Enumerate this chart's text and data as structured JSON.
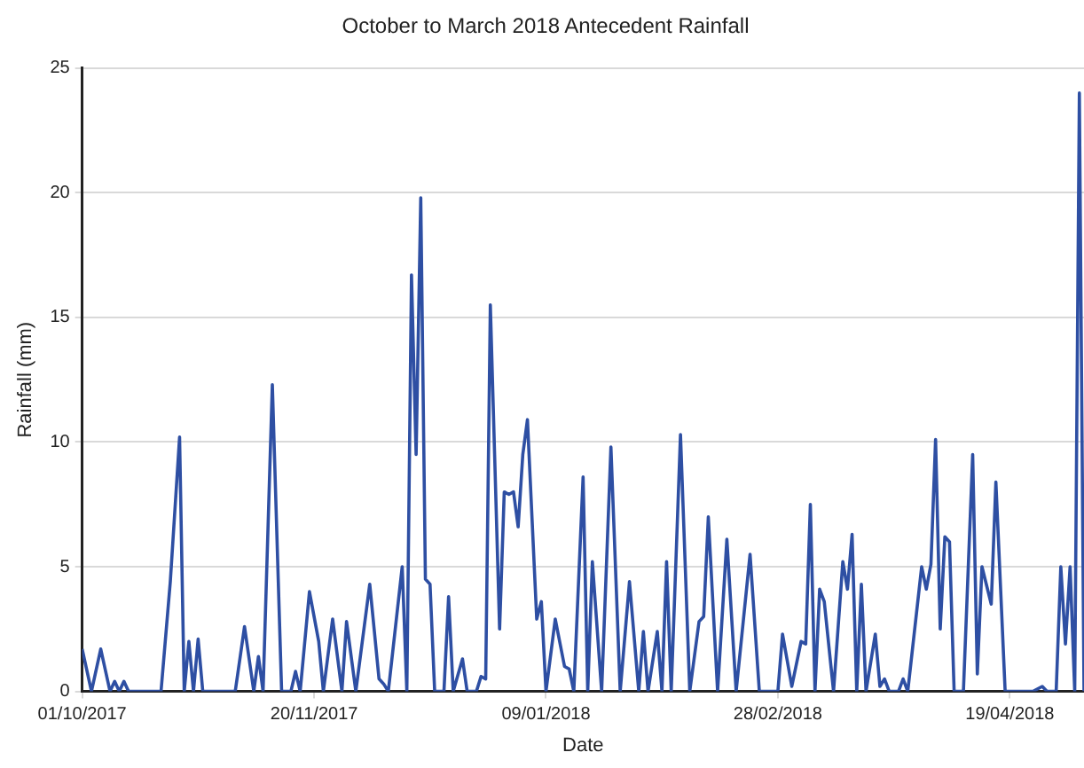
{
  "chart_data": {
    "type": "line",
    "title": "October to March 2018 Antecedent Rainfall",
    "xlabel": "Date",
    "ylabel": "Rainfall (mm)",
    "x": [
      "2017-10-01",
      "2017-10-03",
      "2017-10-05",
      "2017-10-07",
      "2017-10-08",
      "2017-10-09",
      "2017-10-10",
      "2017-10-11",
      "2017-10-18",
      "2017-10-20",
      "2017-10-22",
      "2017-10-23",
      "2017-10-24",
      "2017-10-25",
      "2017-10-26",
      "2017-10-27",
      "2017-11-03",
      "2017-11-05",
      "2017-11-07",
      "2017-11-08",
      "2017-11-09",
      "2017-11-11",
      "2017-11-13",
      "2017-11-15",
      "2017-11-16",
      "2017-11-17",
      "2017-11-19",
      "2017-11-21",
      "2017-11-22",
      "2017-11-24",
      "2017-11-26",
      "2017-11-27",
      "2017-11-29",
      "2017-12-02",
      "2017-12-04",
      "2017-12-05",
      "2017-12-06",
      "2017-12-09",
      "2017-12-10",
      "2017-12-11",
      "2017-12-12",
      "2017-12-13",
      "2017-12-14",
      "2017-12-15",
      "2017-12-16",
      "2017-12-18",
      "2017-12-19",
      "2017-12-20",
      "2017-12-22",
      "2017-12-23",
      "2017-12-25",
      "2017-12-26",
      "2017-12-27",
      "2017-12-28",
      "2017-12-30",
      "2017-12-31",
      "2018-01-01",
      "2018-01-02",
      "2018-01-03",
      "2018-01-04",
      "2018-01-05",
      "2018-01-07",
      "2018-01-08",
      "2018-01-09",
      "2018-01-11",
      "2018-01-13",
      "2018-01-14",
      "2018-01-15",
      "2018-01-17",
      "2018-01-18",
      "2018-01-19",
      "2018-01-21",
      "2018-01-23",
      "2018-01-25",
      "2018-01-27",
      "2018-01-29",
      "2018-01-30",
      "2018-01-31",
      "2018-02-02",
      "2018-02-03",
      "2018-02-04",
      "2018-02-05",
      "2018-02-07",
      "2018-02-09",
      "2018-02-11",
      "2018-02-12",
      "2018-02-13",
      "2018-02-15",
      "2018-02-17",
      "2018-02-19",
      "2018-02-22",
      "2018-02-24",
      "2018-02-28",
      "2018-03-01",
      "2018-03-03",
      "2018-03-05",
      "2018-03-06",
      "2018-03-07",
      "2018-03-08",
      "2018-03-09",
      "2018-03-10",
      "2018-03-12",
      "2018-03-14",
      "2018-03-15",
      "2018-03-16",
      "2018-03-17",
      "2018-03-18",
      "2018-03-19",
      "2018-03-21",
      "2018-03-22",
      "2018-03-23",
      "2018-03-24",
      "2018-03-26",
      "2018-03-27",
      "2018-03-28",
      "2018-03-31",
      "2018-04-01",
      "2018-04-02",
      "2018-04-03",
      "2018-04-04",
      "2018-04-05",
      "2018-04-06",
      "2018-04-07",
      "2018-04-09",
      "2018-04-11",
      "2018-04-12",
      "2018-04-13",
      "2018-04-15",
      "2018-04-16",
      "2018-04-18",
      "2018-04-24",
      "2018-04-26",
      "2018-04-27",
      "2018-04-29",
      "2018-04-30",
      "2018-05-01",
      "2018-05-02",
      "2018-05-03",
      "2018-05-04",
      "2018-05-05"
    ],
    "series": [
      {
        "color": "#2e4fa3",
        "values": [
          1.7,
          0,
          1.7,
          0,
          0.4,
          0,
          0.4,
          0,
          0,
          4.4,
          10.2,
          0,
          2.0,
          0,
          2.1,
          0,
          0,
          2.6,
          0,
          1.4,
          0,
          12.3,
          0,
          0,
          0.8,
          0,
          4.0,
          2.0,
          0,
          2.9,
          0,
          2.8,
          0,
          4.3,
          0.5,
          0.3,
          0,
          5.0,
          0,
          16.7,
          9.5,
          19.8,
          4.5,
          4.3,
          0,
          0,
          3.8,
          0,
          1.3,
          0,
          0,
          0.6,
          0.5,
          15.5,
          2.5,
          8.0,
          7.9,
          8.0,
          6.6,
          9.5,
          10.9,
          2.9,
          3.6,
          0,
          2.9,
          1.0,
          0.9,
          0,
          8.6,
          0,
          5.2,
          0,
          9.8,
          0,
          4.4,
          0,
          2.4,
          0,
          2.4,
          0,
          5.2,
          0,
          10.3,
          0,
          2.8,
          3.0,
          7.0,
          0,
          6.1,
          0,
          5.5,
          0,
          0,
          2.3,
          0.2,
          2.0,
          1.9,
          7.5,
          0,
          4.1,
          3.6,
          0,
          5.2,
          4.1,
          6.3,
          0,
          4.3,
          0,
          2.3,
          0.2,
          0.5,
          0,
          0,
          0.5,
          0,
          5.0,
          4.1,
          5.1,
          10.1,
          2.5,
          6.2,
          6.0,
          0,
          0,
          9.5,
          0.7,
          5.0,
          3.5,
          8.4,
          0,
          0,
          0.2,
          0,
          0,
          5.0,
          1.9,
          5.0,
          0,
          24.0,
          0
        ]
      }
    ],
    "xlim": [
      "2017-10-01",
      "2018-05-05"
    ],
    "xticks": [
      {
        "value": "2017-10-01",
        "label": "01/10/2017"
      },
      {
        "value": "2017-11-20",
        "label": "20/11/2017"
      },
      {
        "value": "2018-01-09",
        "label": "09/01/2018"
      },
      {
        "value": "2018-02-28",
        "label": "28/02/2018"
      },
      {
        "value": "2018-04-19",
        "label": "19/04/2018"
      }
    ],
    "ylim": [
      0,
      25
    ],
    "yticks": [
      0,
      5,
      10,
      15,
      20,
      25
    ],
    "grid": "y",
    "legend": false,
    "marker": "none",
    "line_style": "solid"
  }
}
